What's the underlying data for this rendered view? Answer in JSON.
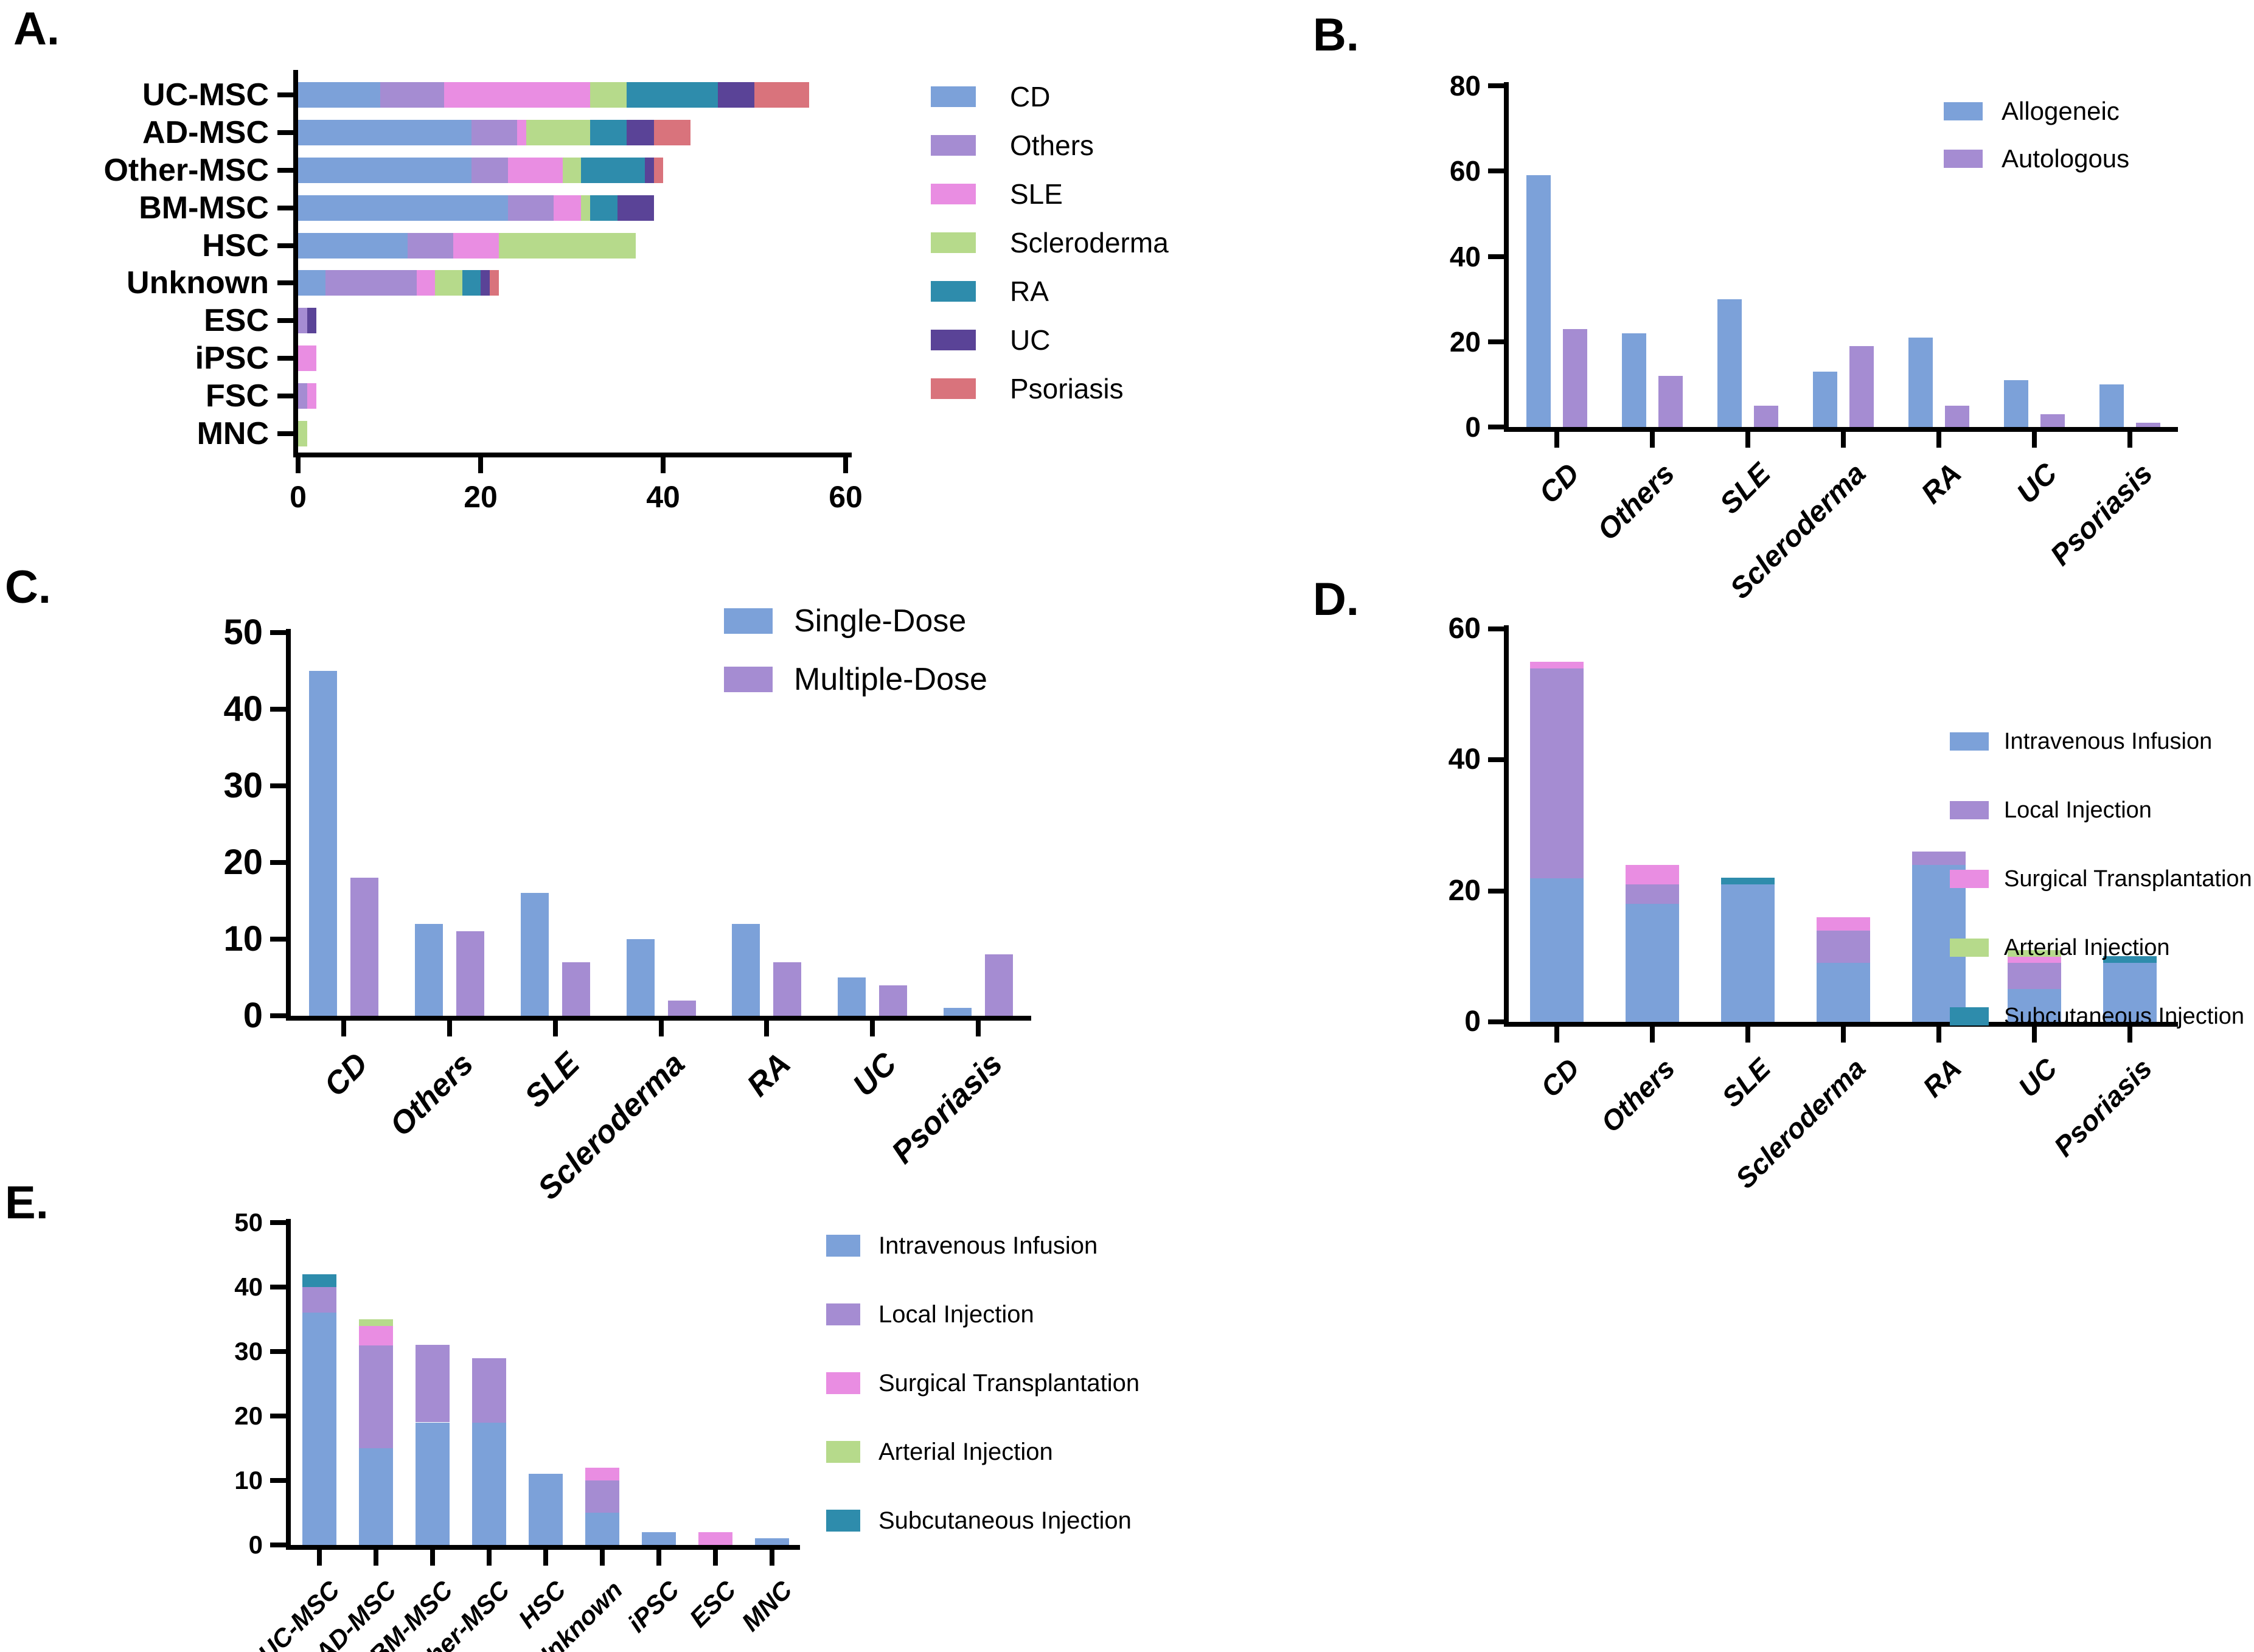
{
  "figure": {
    "background": "#FFFFFF",
    "panel_labels": [
      "A.",
      "B.",
      "C.",
      "D.",
      "E."
    ]
  },
  "palette": {
    "blue": "#7CA1D9",
    "light_purple": "#A58CD2",
    "magenta": "#E98DE2",
    "green": "#B6DA8B",
    "teal": "#2E8CAC",
    "dark_purple": "#5A4397",
    "salmon": "#D9737C"
  },
  "chart_data": [
    {
      "panel_label": "A.",
      "type": "bar",
      "subtype": "stacked-horizontal",
      "orientation": "horizontal",
      "grid": false,
      "legend_position": "right",
      "categories": [
        "UC-MSC",
        "AD-MSC",
        "Other-MSC",
        "BM-MSC",
        "HSC",
        "Unknown",
        "ESC",
        "iPSC",
        "FSC",
        "MNC"
      ],
      "x_ticks": [
        0,
        20,
        40,
        60
      ],
      "xlim": [
        0,
        60
      ],
      "series": [
        {
          "name": "CD",
          "color": "#7CA1D9",
          "values": [
            9,
            19,
            19,
            23,
            12,
            3,
            0,
            0,
            0,
            0
          ]
        },
        {
          "name": "Others",
          "color": "#A58CD2",
          "values": [
            7,
            5,
            4,
            5,
            5,
            10,
            1,
            0,
            1,
            0
          ]
        },
        {
          "name": "SLE",
          "color": "#E98DE2",
          "values": [
            16,
            1,
            6,
            3,
            5,
            2,
            0,
            2,
            1,
            0
          ]
        },
        {
          "name": "Scleroderma",
          "color": "#B6DA8B",
          "values": [
            4,
            7,
            2,
            1,
            15,
            3,
            0,
            0,
            0,
            1
          ]
        },
        {
          "name": "RA",
          "color": "#2E8CAC",
          "values": [
            10,
            4,
            7,
            3,
            0,
            2,
            0,
            0,
            0,
            0
          ]
        },
        {
          "name": "UC",
          "color": "#5A4397",
          "values": [
            4,
            3,
            1,
            4,
            0,
            1,
            1,
            0,
            0,
            0
          ]
        },
        {
          "name": "Psoriasis",
          "color": "#D9737C",
          "values": [
            6,
            4,
            1,
            0,
            0,
            1,
            0,
            0,
            0,
            0
          ]
        }
      ]
    },
    {
      "panel_label": "B.",
      "type": "bar",
      "subtype": "grouped-vertical",
      "orientation": "vertical",
      "grid": false,
      "legend_position": "top-right",
      "categories": [
        "CD",
        "Others",
        "SLE",
        "Scleroderma",
        "RA",
        "UC",
        "Psoriasis"
      ],
      "y_ticks": [
        0,
        20,
        40,
        60,
        80
      ],
      "ylim": [
        0,
        80
      ],
      "series": [
        {
          "name": "Allogeneic",
          "color": "#7CA1D9",
          "values": [
            59,
            22,
            30,
            13,
            21,
            11,
            10
          ]
        },
        {
          "name": "Autologous",
          "color": "#A58CD2",
          "values": [
            23,
            12,
            5,
            19,
            5,
            3,
            1
          ]
        }
      ]
    },
    {
      "panel_label": "C.",
      "type": "bar",
      "subtype": "grouped-vertical",
      "orientation": "vertical",
      "grid": false,
      "legend_position": "top-right",
      "categories": [
        "CD",
        "Others",
        "SLE",
        "Scleroderma",
        "RA",
        "UC",
        "Psoriasis"
      ],
      "y_ticks": [
        0,
        10,
        20,
        30,
        40,
        50
      ],
      "ylim": [
        0,
        50
      ],
      "series": [
        {
          "name": "Single-Dose",
          "color": "#7CA1D9",
          "values": [
            45,
            12,
            16,
            10,
            12,
            5,
            1
          ]
        },
        {
          "name": "Multiple-Dose",
          "color": "#A58CD2",
          "values": [
            18,
            11,
            7,
            2,
            7,
            4,
            8
          ]
        }
      ]
    },
    {
      "panel_label": "D.",
      "type": "bar",
      "subtype": "stacked-vertical",
      "orientation": "vertical",
      "grid": false,
      "legend_position": "top-right",
      "categories": [
        "CD",
        "Others",
        "SLE",
        "Scleroderma",
        "RA",
        "UC",
        "Psoriasis"
      ],
      "y_ticks": [
        0,
        20,
        40,
        60
      ],
      "ylim": [
        0,
        60
      ],
      "series": [
        {
          "name": "Intravenous Infusion",
          "color": "#7CA1D9",
          "values": [
            22,
            18,
            21,
            9,
            24,
            5,
            9
          ]
        },
        {
          "name": "Local Injection",
          "color": "#A58CD2",
          "values": [
            32,
            3,
            0,
            5,
            2,
            4,
            0
          ]
        },
        {
          "name": "Surgical Transplantation",
          "color": "#E98DE2",
          "values": [
            1,
            3,
            0,
            2,
            0,
            1,
            0
          ]
        },
        {
          "name": "Arterial Injection",
          "color": "#B6DA8B",
          "values": [
            0,
            0,
            0,
            0,
            0,
            1,
            0
          ]
        },
        {
          "name": "Subcutaneous Injection",
          "color": "#2E8CAC",
          "values": [
            0,
            0,
            1,
            0,
            0,
            0,
            1
          ]
        }
      ]
    },
    {
      "panel_label": "E.",
      "type": "bar",
      "subtype": "stacked-vertical",
      "orientation": "vertical",
      "grid": false,
      "legend_position": "top-right",
      "categories": [
        "UC-MSC",
        "AD-MSC",
        "BM-MSC",
        "Other-MSC",
        "HSC",
        "Unknown",
        "iPSC",
        "ESC",
        "MNC"
      ],
      "y_ticks": [
        0,
        10,
        20,
        30,
        40,
        50
      ],
      "ylim": [
        0,
        50
      ],
      "series": [
        {
          "name": "Intravenous Infusion",
          "color": "#7CA1D9",
          "values": [
            36,
            15,
            19,
            19,
            11,
            5,
            2,
            0,
            1
          ]
        },
        {
          "name": "Local Injection",
          "color": "#A58CD2",
          "values": [
            4,
            16,
            12,
            10,
            0,
            5,
            0,
            0,
            0
          ]
        },
        {
          "name": "Surgical Transplantation",
          "color": "#E98DE2",
          "values": [
            0,
            3,
            0,
            0,
            0,
            2,
            0,
            2,
            0
          ]
        },
        {
          "name": "Arterial Injection",
          "color": "#B6DA8B",
          "values": [
            0,
            1,
            0,
            0,
            0,
            0,
            0,
            0,
            0
          ]
        },
        {
          "name": "Subcutaneous Injection",
          "color": "#2E8CAC",
          "values": [
            2,
            0,
            0,
            0,
            0,
            0,
            0,
            0,
            0
          ]
        }
      ]
    }
  ]
}
